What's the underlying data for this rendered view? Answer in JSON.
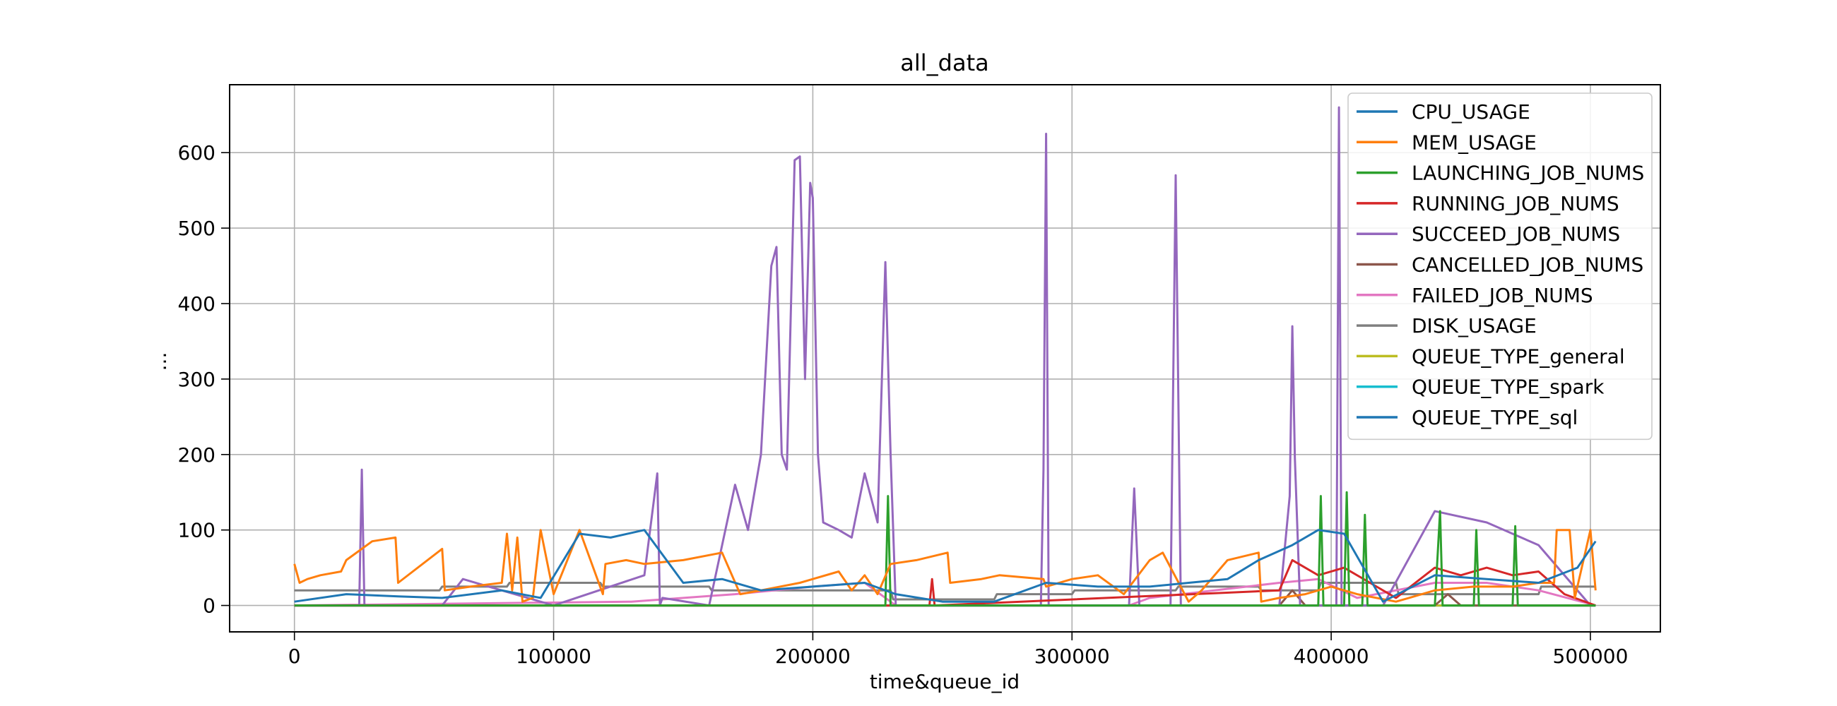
{
  "chart_data": {
    "type": "line",
    "title": "all_data",
    "xlabel": "time&queue_id",
    "ylabel": "...",
    "xlim": [
      -25000,
      527000
    ],
    "ylim": [
      -35,
      690
    ],
    "xticks": [
      0,
      100000,
      200000,
      300000,
      400000,
      500000
    ],
    "xtick_labels": [
      "0",
      "100000",
      "200000",
      "300000",
      "400000",
      "500000"
    ],
    "yticks": [
      0,
      100,
      200,
      300,
      400,
      500,
      600
    ],
    "ytick_labels": [
      "0",
      "100",
      "200",
      "300",
      "400",
      "500",
      "600"
    ],
    "grid": true,
    "legend_position": "upper right",
    "series": [
      {
        "name": "CPU_USAGE",
        "color": "#1f77b4",
        "x": [
          0,
          20000,
          40000,
          57000,
          80000,
          95000,
          110000,
          122000,
          135000,
          150000,
          165000,
          180000,
          200000,
          220000,
          232000,
          250000,
          270000,
          290000,
          310000,
          330000,
          345000,
          360000,
          372000,
          385000,
          395000,
          405000,
          420000,
          440000,
          460000,
          480000,
          495000,
          502000
        ],
        "y": [
          5,
          15,
          12,
          10,
          20,
          10,
          95,
          90,
          100,
          30,
          35,
          20,
          25,
          30,
          15,
          5,
          5,
          30,
          25,
          25,
          30,
          35,
          60,
          80,
          100,
          95,
          5,
          40,
          35,
          30,
          50,
          85
        ]
      },
      {
        "name": "MEM_USAGE",
        "color": "#ff7f0e",
        "x": [
          0,
          2000,
          5000,
          10000,
          18000,
          20000,
          30000,
          39000,
          40000,
          57000,
          58000,
          68000,
          80000,
          82000,
          84000,
          86000,
          88000,
          92000,
          95000,
          100000,
          110000,
          119000,
          120000,
          128000,
          135000,
          150000,
          165000,
          172000,
          180000,
          195000,
          210000,
          215000,
          220000,
          225000,
          230000,
          240000,
          252000,
          253000,
          265000,
          272000,
          289000,
          290000,
          300000,
          310000,
          320000,
          330000,
          335000,
          345000,
          350000,
          360000,
          372000,
          373000,
          380000,
          390000,
          400000,
          410000,
          425000,
          430000,
          440000,
          455000,
          470000,
          480000,
          486000,
          487000,
          492000,
          494000,
          500000,
          502000
        ],
        "y": [
          55,
          30,
          35,
          40,
          45,
          60,
          85,
          90,
          30,
          75,
          20,
          25,
          30,
          95,
          20,
          90,
          5,
          10,
          100,
          15,
          100,
          15,
          55,
          60,
          55,
          60,
          70,
          15,
          20,
          30,
          45,
          20,
          40,
          15,
          55,
          60,
          70,
          30,
          35,
          40,
          35,
          25,
          35,
          40,
          15,
          60,
          70,
          5,
          20,
          60,
          70,
          5,
          10,
          15,
          25,
          15,
          5,
          10,
          20,
          25,
          25,
          30,
          30,
          100,
          100,
          10,
          100,
          20
        ]
      },
      {
        "name": "LAUNCHING_JOB_NUMS",
        "color": "#2ca02c",
        "x": [
          0,
          180000,
          228000,
          229000,
          230000,
          380000,
          395000,
          396000,
          397000,
          405000,
          406000,
          407000,
          412000,
          413000,
          414000,
          440000,
          442000,
          443000,
          455000,
          456000,
          457000,
          470000,
          471000,
          472000,
          490000,
          502000
        ],
        "y": [
          0,
          0,
          0,
          145,
          0,
          0,
          0,
          145,
          0,
          0,
          150,
          0,
          0,
          120,
          0,
          0,
          125,
          0,
          0,
          100,
          0,
          0,
          105,
          0,
          0,
          0
        ]
      },
      {
        "name": "RUNNING_JOB_NUMS",
        "color": "#d62728",
        "x": [
          0,
          245000,
          246000,
          247000,
          380000,
          385000,
          395000,
          405000,
          415000,
          425000,
          440000,
          450000,
          460000,
          470000,
          480000,
          490000,
          502000
        ],
        "y": [
          0,
          0,
          35,
          0,
          20,
          60,
          40,
          50,
          30,
          10,
          50,
          40,
          50,
          40,
          45,
          15,
          0
        ]
      },
      {
        "name": "SUCCEED_JOB_NUMS",
        "color": "#9467bd",
        "x": [
          0,
          25000,
          26000,
          27000,
          57000,
          65000,
          75000,
          100000,
          135000,
          140000,
          141000,
          142000,
          160000,
          170000,
          175000,
          180000,
          184000,
          186000,
          188000,
          190000,
          193000,
          195000,
          197000,
          199000,
          200000,
          202000,
          204000,
          210000,
          215000,
          220000,
          225000,
          228000,
          230000,
          232000,
          240000,
          288000,
          289000,
          290000,
          291000,
          300000,
          322000,
          324000,
          326000,
          338000,
          340000,
          342000,
          350000,
          380000,
          384000,
          385000,
          386000,
          388000,
          400000,
          402000,
          403000,
          404000,
          406000,
          420000,
          440000,
          460000,
          480000,
          500000,
          502000
        ],
        "y": [
          0,
          0,
          180,
          0,
          0,
          35,
          25,
          0,
          40,
          175,
          0,
          10,
          0,
          160,
          100,
          200,
          450,
          475,
          200,
          180,
          590,
          595,
          300,
          560,
          540,
          200,
          110,
          100,
          90,
          175,
          110,
          455,
          200,
          0,
          0,
          0,
          180,
          625,
          0,
          0,
          0,
          155,
          0,
          0,
          570,
          0,
          0,
          0,
          145,
          370,
          195,
          0,
          0,
          0,
          660,
          0,
          0,
          0,
          125,
          110,
          80,
          0,
          0
        ]
      },
      {
        "name": "CANCELLED_JOB_NUMS",
        "color": "#8c564b",
        "x": [
          0,
          380000,
          385000,
          390000,
          440000,
          445000,
          450000,
          502000
        ],
        "y": [
          0,
          0,
          20,
          0,
          0,
          15,
          0,
          0
        ]
      },
      {
        "name": "FAILED_JOB_NUMS",
        "color": "#e377c2",
        "x": [
          0,
          130000,
          170000,
          185000,
          200000,
          220000,
          232000,
          322000,
          330000,
          380000,
          395000,
          410000,
          440000,
          460000,
          480000,
          502000
        ],
        "y": [
          0,
          5,
          15,
          20,
          25,
          30,
          0,
          0,
          10,
          30,
          35,
          10,
          30,
          30,
          20,
          0
        ]
      },
      {
        "name": "DISK_USAGE",
        "color": "#7f7f7f",
        "x": [
          0,
          56000,
          57000,
          82000,
          83000,
          118000,
          119000,
          160000,
          161000,
          230000,
          231000,
          270000,
          271000,
          300000,
          301000,
          340000,
          341000,
          372000,
          373000,
          395000,
          396000,
          425000,
          426000,
          480000,
          481000,
          502000
        ],
        "y": [
          20,
          20,
          25,
          25,
          30,
          30,
          25,
          25,
          20,
          20,
          8,
          8,
          15,
          15,
          20,
          20,
          25,
          25,
          20,
          20,
          30,
          30,
          15,
          15,
          25,
          25
        ]
      },
      {
        "name": "QUEUE_TYPE_general",
        "color": "#bcbd22",
        "x": [
          0,
          502000
        ],
        "y": [
          0,
          0
        ]
      },
      {
        "name": "QUEUE_TYPE_spark",
        "color": "#17becf",
        "x": [
          0,
          502000
        ],
        "y": [
          0,
          0
        ]
      },
      {
        "name": "QUEUE_TYPE_sql",
        "color": "#1f77b4",
        "x": [
          0,
          502000
        ],
        "y": [
          0,
          0
        ]
      }
    ]
  }
}
